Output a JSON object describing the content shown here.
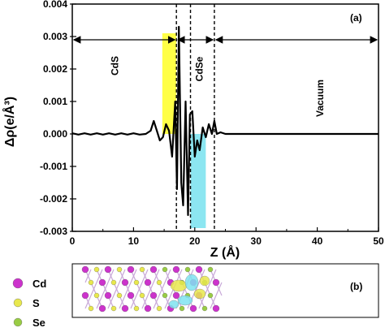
{
  "chart_data": {
    "type": "line",
    "panel_label": "(a)",
    "xlabel": "Z (Å)",
    "ylabel": "Δρ(e/Å³)",
    "xlim": [
      0,
      50
    ],
    "ylim": [
      -0.003,
      0.004
    ],
    "x_ticks": [
      "0",
      "10",
      "20",
      "30",
      "40",
      "50"
    ],
    "y_ticks": [
      "0.004",
      "0.003",
      "0.002",
      "0.001",
      "0.000",
      "-0.001",
      "-0.002",
      "-0.003"
    ],
    "y_tick_values": [
      0.004,
      0.003,
      0.002,
      0.001,
      0.0,
      -0.001,
      -0.002,
      -0.003
    ],
    "x_tick_values": [
      0,
      10,
      20,
      30,
      40,
      50
    ],
    "regions": [
      {
        "label": "CdS",
        "from": 0,
        "to": 17.0
      },
      {
        "label": "CdSe",
        "from": 17.0,
        "to": 23.2
      },
      {
        "label": "Vacuum",
        "from": 23.2,
        "to": 50
      }
    ],
    "boundaries": [
      17.0,
      19.3,
      23.2
    ],
    "shaded": [
      {
        "from": 14.7,
        "to": 17.0,
        "sign": "positive",
        "color": "#ffff33"
      },
      {
        "from": 19.3,
        "to": 21.8,
        "sign": "negative",
        "color": "#7fe3f0"
      }
    ],
    "series": [
      {
        "x": [
          0,
          1,
          2,
          3,
          4,
          5,
          6,
          7,
          8,
          9,
          10,
          11,
          12,
          12.8,
          13.3,
          13.8,
          14.3,
          14.8,
          15.3,
          15.8,
          16.3,
          16.8,
          17.1,
          17.4,
          17.8,
          18.1,
          18.5,
          18.9,
          19.2,
          19.6,
          20.0,
          20.4,
          20.8,
          21.3,
          21.8,
          22.3,
          22.8,
          23.2,
          23.6,
          24.2,
          25,
          27,
          30,
          35,
          40,
          45,
          50
        ],
        "y": [
          2e-05,
          -2e-05,
          2e-05,
          -2e-05,
          2e-05,
          -2e-05,
          2e-05,
          -2e-05,
          2e-05,
          -2e-05,
          2e-05,
          -2e-05,
          0.0,
          0.0001,
          0.0004,
          0.0001,
          -0.0002,
          -0.0001,
          0.0003,
          0.0001,
          -0.0007,
          0.001,
          -0.0017,
          0.0033,
          -0.0015,
          -0.0022,
          0.001,
          -0.0025,
          0.0006,
          0.0007,
          -0.0007,
          -0.0002,
          -0.0005,
          0.0002,
          -0.0001,
          0.0003,
          0.0,
          0.0004,
          0.0,
          5e-05,
          0.0,
          0.0,
          0.0,
          0.0,
          0.0,
          0.0,
          0.0
        ]
      }
    ],
    "grid": false,
    "colors": {
      "line": "#000000",
      "positive_fill": "#ffff33",
      "negative_fill": "#7fe3f0"
    }
  },
  "structure_panel": {
    "label": "(b)",
    "legend": [
      {
        "name": "Cd",
        "color": "#cc33cc"
      },
      {
        "name": "S",
        "color": "#e8e84d"
      },
      {
        "name": "Se",
        "color": "#99cc44"
      }
    ]
  }
}
